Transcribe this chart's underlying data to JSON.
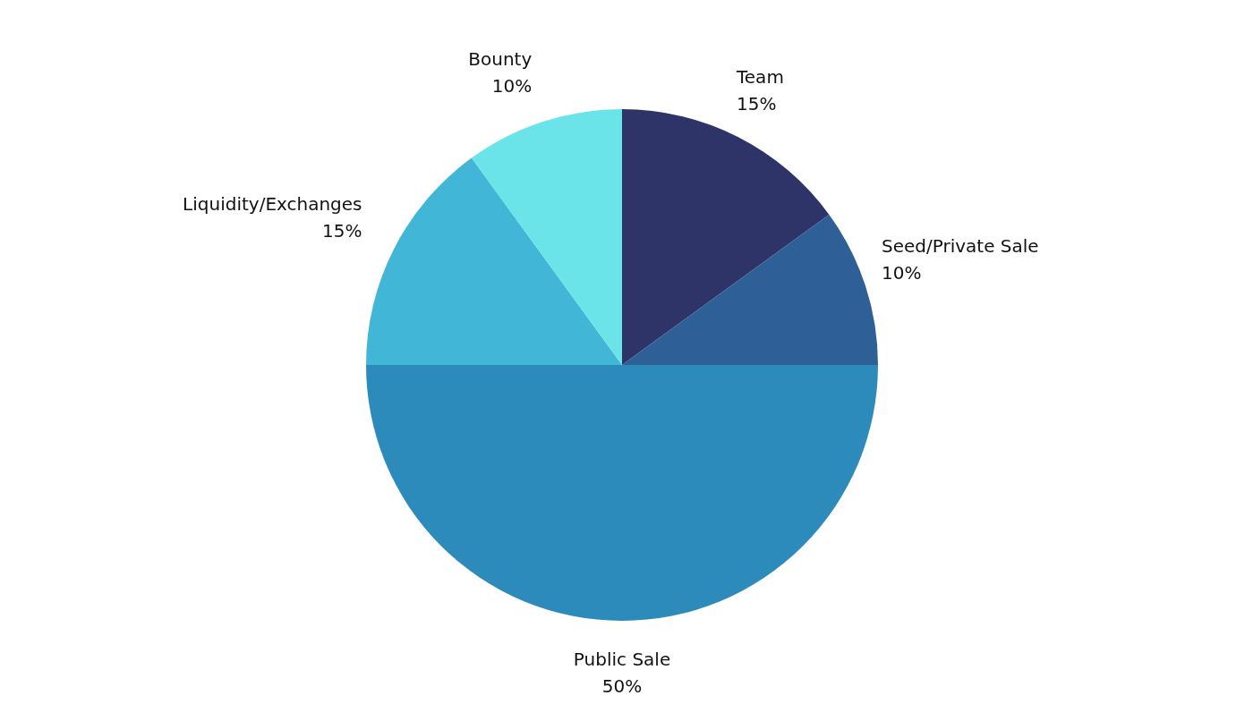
{
  "chart_data": {
    "type": "pie",
    "categories": [
      "Team",
      "Seed/Private Sale",
      "Public Sale",
      "Liquidity/Exchanges",
      "Bounty"
    ],
    "values": [
      15,
      10,
      50,
      15,
      10
    ],
    "value_labels": [
      "15%",
      "10%",
      "50%",
      "15%",
      "10%"
    ],
    "colors": [
      "#2f3468",
      "#2e5f96",
      "#2c8bba",
      "#42b6d6",
      "#6ae4e8"
    ],
    "data_labels": true
  }
}
